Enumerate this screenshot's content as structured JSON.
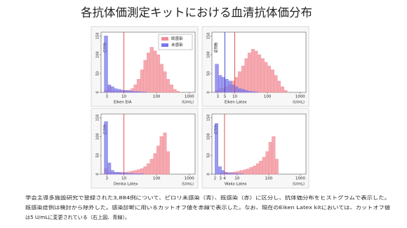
{
  "title": "各抗体価測定キットにおける血清抗体価分布",
  "caption": [
    "学会主導多施設研究で登録された3,884例について、ピロリ未感染（青）、既感染（赤）に区分し、抗体価分布をヒストグラムで表示した。",
    "既感染症例は検討から除外した。感染診断に用いるカットオフ値を赤線で表示した。なお、現在のEiken Latex kitにおいては、カットオフ値",
    "は5 U/mLに変更されている（右上図、青線）。"
  ],
  "chart_data": [
    {
      "type": "histogram",
      "xlabel": "Eiken EIA",
      "unit": "(U/mL)",
      "ylabel": "症例数",
      "log_x": true,
      "legend": "upper right",
      "bins": [
        2,
        2.5,
        3.2,
        4,
        5,
        6.3,
        8,
        10,
        12.6,
        16,
        20,
        25,
        32,
        40,
        50,
        63,
        80,
        100,
        126,
        160,
        200,
        250,
        320,
        400,
        500
      ],
      "series": [
        {
          "name": "既感染",
          "color": "#f28c96",
          "values": [
            0,
            5,
            15,
            5,
            3,
            3,
            3,
            4,
            5,
            10,
            20,
            35,
            60,
            85,
            105,
            120,
            110,
            100,
            75,
            55,
            35,
            20,
            8,
            3
          ]
        },
        {
          "name": "未感染",
          "color": "#7a78e8",
          "values": [
            0,
            150,
            20,
            15,
            10,
            8,
            6,
            5,
            4,
            3,
            2,
            2,
            1,
            1,
            0,
            0,
            0,
            0,
            0,
            0,
            0,
            0,
            0,
            0
          ]
        }
      ],
      "cutoffs": [
        {
          "value": 10,
          "color": "#e0404a"
        }
      ],
      "xlim": [
        2,
        1500
      ],
      "xticks": [
        3,
        10,
        100,
        1000
      ],
      "ylim": [
        0,
        160
      ],
      "yticks": [
        0,
        50,
        100,
        150
      ]
    },
    {
      "type": "histogram",
      "xlabel": "Eiken Latex",
      "unit": "(U/mL)",
      "ylabel": "症例数",
      "log_x": true,
      "bins": [
        2,
        2.5,
        3.2,
        4,
        5,
        6.3,
        8,
        10,
        12.6,
        16,
        20,
        25,
        32,
        40,
        50,
        63,
        80,
        100,
        126,
        160,
        200,
        250,
        320,
        400,
        500
      ],
      "series": [
        {
          "name": "既感染",
          "color": "#f28c96",
          "values": [
            0,
            5,
            10,
            12,
            15,
            20,
            30,
            40,
            55,
            70,
            90,
            105,
            115,
            110,
            100,
            90,
            80,
            70,
            60,
            45,
            30,
            15,
            5,
            0
          ]
        },
        {
          "name": "未感染",
          "color": "#7a78e8",
          "values": [
            0,
            75,
            45,
            40,
            35,
            30,
            20,
            15,
            10,
            8,
            5,
            3,
            2,
            1,
            0,
            0,
            0,
            0,
            0,
            0,
            0,
            0,
            0,
            0
          ]
        }
      ],
      "cutoffs": [
        {
          "value": 5,
          "color": "#3a3ad0"
        },
        {
          "value": 10,
          "color": "#e0404a"
        }
      ],
      "xlim": [
        2,
        1500
      ],
      "xticks": [
        3,
        5,
        10,
        100,
        1000
      ],
      "ylim": [
        0,
        160
      ],
      "yticks": [
        0,
        50,
        100,
        150
      ]
    },
    {
      "type": "histogram",
      "xlabel": "Denka Latex",
      "unit": "(U/mL)",
      "ylabel": "症例数",
      "log_x": true,
      "bins": [
        2,
        2.5,
        3.2,
        4,
        5,
        6.3,
        8,
        10,
        12.6,
        16,
        20,
        25,
        32,
        40,
        50,
        63,
        80,
        100,
        126,
        160,
        200,
        250,
        320,
        400,
        500
      ],
      "series": [
        {
          "name": "既感染",
          "color": "#f28c96",
          "values": [
            0,
            15,
            5,
            3,
            3,
            3,
            4,
            5,
            6,
            8,
            10,
            12,
            15,
            20,
            28,
            40,
            55,
            75,
            100,
            110,
            60,
            0,
            0,
            0
          ]
        },
        {
          "name": "未感染",
          "color": "#7a78e8",
          "values": [
            0,
            140,
            30,
            10,
            5,
            5,
            4,
            3,
            2,
            2,
            1,
            1,
            1,
            0,
            0,
            0,
            0,
            0,
            0,
            0,
            0,
            0,
            0,
            0
          ]
        }
      ],
      "cutoffs": [
        {
          "value": 10,
          "color": "#e0404a"
        }
      ],
      "xlim": [
        2,
        1500
      ],
      "xticks": [
        3,
        10,
        100,
        1000
      ],
      "ylim": [
        0,
        160
      ],
      "yticks": [
        0,
        50,
        100,
        150
      ]
    },
    {
      "type": "histogram",
      "xlabel": "Wako Latex",
      "unit": "(U/mL)",
      "ylabel": "症例数",
      "log_x": true,
      "bins": [
        2,
        2.5,
        3.2,
        4,
        5,
        6.3,
        8,
        10,
        12.6,
        16,
        20,
        25,
        32,
        40,
        50,
        63,
        80,
        100,
        126,
        160,
        200,
        250,
        320,
        400,
        500
      ],
      "series": [
        {
          "name": "既感染",
          "color": "#f28c96",
          "values": [
            0,
            2,
            3,
            3,
            4,
            5,
            6,
            8,
            10,
            12,
            14,
            18,
            22,
            28,
            35,
            45,
            60,
            85,
            100,
            40,
            0,
            0,
            0,
            0
          ]
        },
        {
          "name": "未感染",
          "color": "#7a78e8",
          "values": [
            135,
            20,
            10,
            5,
            3,
            2,
            2,
            1,
            1,
            0,
            0,
            0,
            0,
            0,
            0,
            0,
            0,
            0,
            0,
            0,
            0,
            0,
            0,
            0
          ]
        }
      ],
      "cutoffs": [
        {
          "value": 4,
          "color": "#e0404a"
        }
      ],
      "xlim": [
        1.6,
        1500
      ],
      "xticks": [
        2,
        3,
        4,
        10,
        100,
        1000
      ],
      "ylim": [
        0,
        160
      ],
      "yticks": [
        0,
        50,
        100,
        150
      ]
    }
  ]
}
